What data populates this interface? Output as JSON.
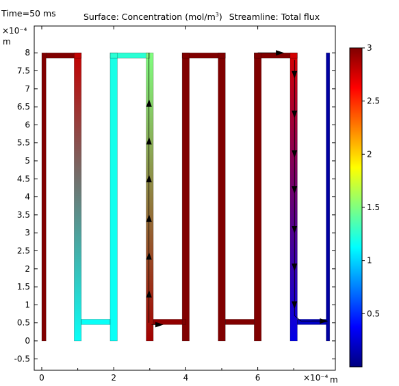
{
  "time_label": "Time=50 ms",
  "title_surface_prefix": "Surface: Concentration (mol/m",
  "title_surface_sup": "3",
  "title_surface_suffix": ")",
  "title_streamline": "Streamline: Total flux",
  "y_exponent": "×10⁻⁴",
  "y_unit": "m",
  "x_exponent": "×10⁻⁴",
  "x_unit": "m",
  "chart_data": {
    "type": "heatmap",
    "colormap": "rainbow (blue → cyan → green → yellow → red)",
    "xlim": [
      -0.2,
      8.2
    ],
    "ylim": [
      -0.8,
      8.5
    ],
    "x_ticks": [
      "0",
      "2",
      "4",
      "6"
    ],
    "x_tick_values": [
      0,
      2,
      4,
      6
    ],
    "y_ticks": [
      "-0.5",
      "0",
      "0.5",
      "1",
      "1.5",
      "2",
      "2.5",
      "3",
      "3.5",
      "4",
      "4.5",
      "5",
      "5.5",
      "6",
      "6.5",
      "7",
      "7.5",
      "8"
    ],
    "y_tick_values": [
      -0.5,
      0,
      0.5,
      1,
      1.5,
      2,
      2.5,
      3,
      3.5,
      4,
      4.5,
      5,
      5.5,
      6,
      6.5,
      7,
      7.5,
      8
    ],
    "colorbar": {
      "range": [
        0,
        3
      ],
      "ticks": [
        "0.5",
        "1",
        "1.5",
        "2",
        "2.5",
        "3"
      ],
      "tick_values": [
        0.5,
        1,
        1.5,
        2,
        2.5,
        3
      ]
    },
    "channels": [
      {
        "x0": 0.0,
        "x1": 0.12,
        "y0": 0.0,
        "y1": 8.0,
        "c_bottom": 3.0,
        "c_top": 3.0
      },
      {
        "x0": 0.12,
        "x1": 1.1,
        "y0": 7.85,
        "y1": 8.0,
        "c_bottom": 3.0,
        "c_top": 3.0
      },
      {
        "x0": 0.9,
        "x1": 1.1,
        "y0": 0.0,
        "y1": 8.0,
        "c_bottom": 1.15,
        "c_top": 2.8
      },
      {
        "x0": 1.1,
        "x1": 1.9,
        "y0": 0.45,
        "y1": 0.6,
        "c_bottom": 1.15,
        "c_top": 1.15
      },
      {
        "x0": 1.9,
        "x1": 2.1,
        "y0": 0.0,
        "y1": 8.0,
        "c_bottom": 1.15,
        "c_top": 1.2
      },
      {
        "x0": 1.9,
        "x1": 3.0,
        "y0": 7.85,
        "y1": 8.0,
        "c_bottom": 1.25,
        "c_top": 1.25
      },
      {
        "x0": 2.9,
        "x1": 3.1,
        "y0": 0.0,
        "y1": 8.0,
        "c_bottom": 2.9,
        "c_top": 1.5
      },
      {
        "x0": 3.1,
        "x1": 4.0,
        "y0": 0.45,
        "y1": 0.6,
        "c_bottom": 2.95,
        "c_top": 2.95
      },
      {
        "x0": 3.9,
        "x1": 4.1,
        "y0": 0.0,
        "y1": 8.0,
        "c_bottom": 3.0,
        "c_top": 3.0
      },
      {
        "x0": 3.9,
        "x1": 5.1,
        "y0": 7.85,
        "y1": 8.0,
        "c_bottom": 3.0,
        "c_top": 3.0
      },
      {
        "x0": 4.9,
        "x1": 5.1,
        "y0": 0.0,
        "y1": 8.0,
        "c_bottom": 3.0,
        "c_top": 3.0
      },
      {
        "x0": 5.1,
        "x1": 5.9,
        "y0": 0.45,
        "y1": 0.6,
        "c_bottom": 3.0,
        "c_top": 3.0
      },
      {
        "x0": 5.9,
        "x1": 6.1,
        "y0": 0.0,
        "y1": 8.0,
        "c_bottom": 3.0,
        "c_top": 3.0
      },
      {
        "x0": 5.9,
        "x1": 7.1,
        "y0": 7.85,
        "y1": 8.0,
        "c_bottom": 3.0,
        "c_top": 3.0
      },
      {
        "x0": 6.9,
        "x1": 7.1,
        "y0": 0.0,
        "y1": 8.0,
        "c_bottom": 0.3,
        "c_top": 2.75
      },
      {
        "x0": 7.1,
        "x1": 7.9,
        "y0": 0.45,
        "y1": 0.6,
        "c_bottom": 0.2,
        "c_top": 0.2
      },
      {
        "x0": 7.9,
        "x1": 8.0,
        "y0": 0.0,
        "y1": 8.0,
        "c_bottom": 0.1,
        "c_top": 0.1
      }
    ],
    "streamlines": [
      {
        "points": [
          [
            2.98,
            0.5
          ],
          [
            2.98,
            8.0
          ]
        ],
        "arrows": [
          [
            2.98,
            1.3
          ],
          [
            2.98,
            2.35
          ],
          [
            2.98,
            3.4
          ],
          [
            2.98,
            4.5
          ],
          [
            2.98,
            5.55
          ],
          [
            2.98,
            6.6
          ]
        ],
        "arrow_dir": "up"
      },
      {
        "points": [
          [
            3.05,
            0.45
          ],
          [
            3.3,
            0.45
          ]
        ],
        "arrows": [
          [
            3.25,
            0.45
          ]
        ],
        "arrow_dir": "right"
      },
      {
        "points": [
          [
            7.02,
            7.8
          ],
          [
            7.02,
            0.7
          ],
          [
            7.2,
            0.55
          ],
          [
            7.85,
            0.55
          ]
        ],
        "arrows": [
          [
            7.02,
            7.4
          ],
          [
            7.02,
            6.3
          ],
          [
            7.02,
            5.2
          ],
          [
            7.02,
            4.2
          ],
          [
            7.02,
            3.1
          ],
          [
            7.02,
            2.05
          ],
          [
            7.02,
            1.0
          ]
        ],
        "arrow_dir": "down"
      },
      {
        "points": [
          [
            7.5,
            0.55
          ],
          [
            7.85,
            0.55
          ]
        ],
        "arrows": [
          [
            7.82,
            0.55
          ]
        ],
        "arrow_dir": "right"
      },
      {
        "points": [
          [
            6.0,
            8.0
          ],
          [
            6.65,
            8.0
          ]
        ],
        "arrows": [
          [
            6.6,
            8.0
          ]
        ],
        "arrow_dir": "right"
      }
    ]
  }
}
